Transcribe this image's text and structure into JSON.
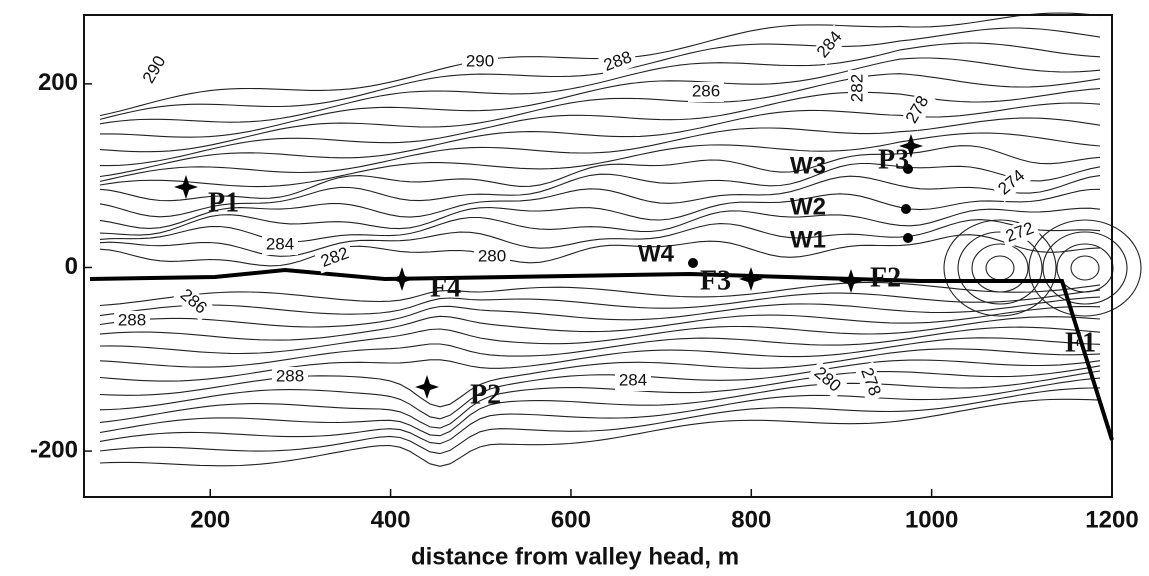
{
  "chart_data": {
    "type": "contour",
    "xlabel": "distance from valley head, m",
    "xlim": [
      60,
      1200
    ],
    "ylim": [
      -250,
      275
    ],
    "xticks": [
      200,
      400,
      600,
      800,
      1000,
      1200
    ],
    "yticks": [
      -200,
      0,
      200
    ],
    "contour_labels": [
      290,
      290,
      288,
      286,
      284,
      282,
      278,
      274,
      272,
      284,
      282,
      280,
      286,
      288,
      288,
      284,
      280,
      278
    ],
    "point_labels": [
      "P1",
      "P2",
      "P3",
      "F1",
      "F2",
      "F3",
      "F4",
      "W1",
      "W2",
      "W3",
      "W4"
    ]
  }
}
